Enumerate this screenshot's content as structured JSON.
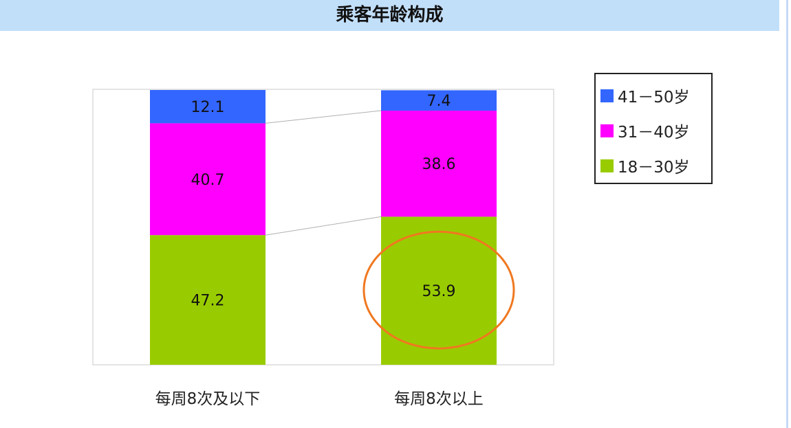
{
  "title": "乘客年龄构成",
  "chart_data": {
    "type": "bar",
    "stacked": true,
    "title": "乘客年龄构成",
    "categories": [
      "每周8次及以下",
      "每周8次以上"
    ],
    "series": [
      {
        "name": "18－30岁",
        "values": [
          47.2,
          53.9
        ],
        "color": "#99cc00"
      },
      {
        "name": "31－40岁",
        "values": [
          40.7,
          38.6
        ],
        "color": "#ff00ff"
      },
      {
        "name": "41－50岁",
        "values": [
          12.1,
          7.4
        ],
        "color": "#3366ff"
      }
    ],
    "ylim": [
      0,
      100
    ],
    "grid": false,
    "legend": "right",
    "annotation": {
      "type": "ellipse",
      "target": "每周8次以上 / 18－30岁",
      "color": "#f07820"
    }
  }
}
